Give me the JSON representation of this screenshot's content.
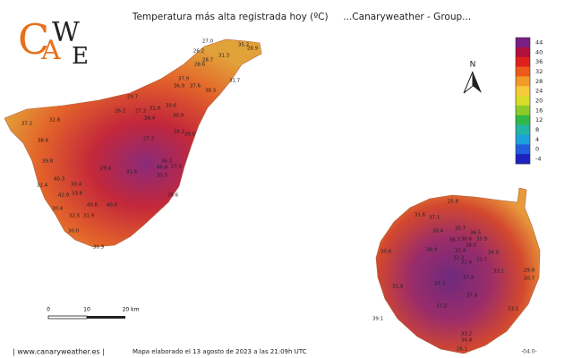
{
  "title": "Temperatura más alta registrada hoy (ºC)     ...Canaryweather - Group...",
  "logo": {
    "letters": [
      "C",
      "A",
      "W",
      "E"
    ]
  },
  "north": "N",
  "scale_bar": {
    "labels": [
      "0",
      "10",
      "20 km"
    ]
  },
  "colorbar": {
    "ticks": [
      44,
      40,
      36,
      32,
      28,
      24,
      20,
      16,
      12,
      8,
      4,
      0,
      -4
    ],
    "colors": [
      "#7a1f86",
      "#b0103c",
      "#e0201c",
      "#ec5a1c",
      "#f29a26",
      "#f6c83a",
      "#d8dc28",
      "#8ccc2a",
      "#30b848",
      "#22b4a4",
      "#1ea0dc",
      "#2060e0",
      "#1c22c0"
    ]
  },
  "stations": {
    "tenerife": [
      "27.0",
      "35.2",
      "28.9",
      "26.2",
      "31.3",
      "28.7",
      "28.6",
      "37.9",
      "31.7",
      "36.9",
      "37.6",
      "38.3",
      "29.7",
      "30.6",
      "31.9",
      "27.3",
      "26.2",
      "30.9",
      "38.4",
      "32.8",
      "37.2",
      "34.1",
      "39.0",
      "27.2",
      "38.6",
      "39.8",
      "36.3",
      "46.8",
      "27.5",
      "29.4",
      "31.4",
      "33.5",
      "40.3",
      "32.4",
      "30.4",
      "33.6",
      "42.9",
      "26.6",
      "40.8",
      "40.0",
      "30.4",
      "32.5",
      "31.9",
      "30.0",
      "30.9"
    ],
    "gran_canaria": [
      "25.8",
      "31.6",
      "37.1",
      "30.4",
      "35.7",
      "36.5",
      "36.7",
      "36.6",
      "35.9",
      "38.9",
      "31.4",
      "28.5",
      "32.3",
      "31.0",
      "31.7",
      "34.5",
      "30.6",
      "37.9",
      "33.1",
      "29.9",
      "30.7",
      "31.9",
      "37.7",
      "37.9",
      "37.2",
      "33.1",
      "39.1",
      "33.2",
      "34.8",
      "26.1"
    ]
  },
  "footer": {
    "site": "| www.canaryweather.es |",
    "note": "Mapa elaborado el 13 agosto de 2023 a las 21:09h UTC",
    "code": "-04.0-"
  }
}
